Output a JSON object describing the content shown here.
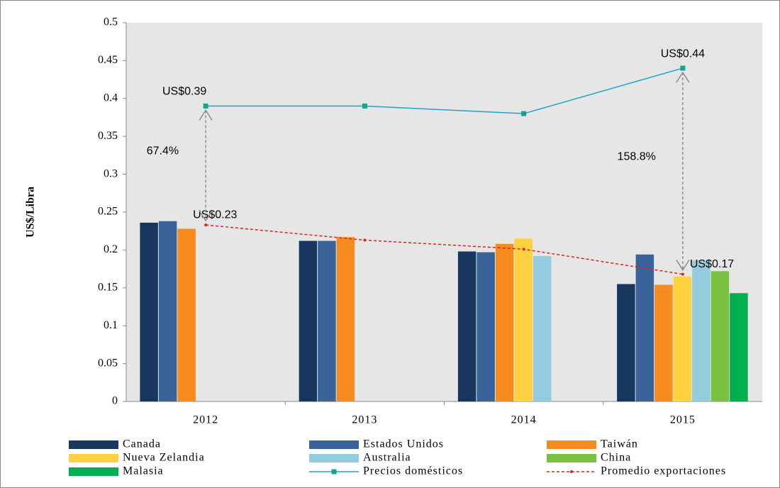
{
  "chart_data": {
    "type": "bar",
    "y_label": "US$/Libra",
    "categories": [
      "2012",
      "2013",
      "2014",
      "2015"
    ],
    "ylim": [
      0,
      0.5
    ],
    "yticks": [
      0,
      0.05,
      0.1,
      0.15,
      0.2,
      0.25,
      0.3,
      0.35,
      0.4,
      0.45,
      0.5
    ],
    "series": [
      {
        "name": "Canada",
        "color": "#17375e",
        "values": [
          0.236,
          0.212,
          0.198,
          0.155
        ]
      },
      {
        "name": "Estados Unidos",
        "color": "#3a6399",
        "values": [
          0.238,
          0.212,
          0.197,
          0.194
        ]
      },
      {
        "name": "Taiwán",
        "color": "#f68b1f",
        "values": [
          0.228,
          0.217,
          0.208,
          0.154
        ]
      },
      {
        "name": "Nueva Zelandia",
        "color": "#ffd040",
        "values": [
          null,
          null,
          0.215,
          0.165
        ]
      },
      {
        "name": "Australia",
        "color": "#93cddd",
        "values": [
          null,
          null,
          0.192,
          0.186
        ]
      },
      {
        "name": "China",
        "color": "#7ac142",
        "values": [
          null,
          null,
          null,
          0.172
        ]
      },
      {
        "name": "Malasia",
        "color": "#00b050",
        "values": [
          null,
          null,
          null,
          0.143
        ]
      }
    ],
    "lines": [
      {
        "name": "Precios domésticos",
        "color": "#1ca6c6",
        "marker_color": "#14a38b",
        "style": "solid",
        "values": [
          0.39,
          0.39,
          0.38,
          0.44
        ],
        "value_labels": [
          "US$0.39",
          null,
          null,
          "US$0.44"
        ]
      },
      {
        "name": "Promedio exportaciones",
        "color": "#e02020",
        "marker_color": "#e02020",
        "style": "dashed",
        "values": [
          0.233,
          0.213,
          0.201,
          0.168
        ],
        "value_labels": [
          "US$0.23",
          null,
          null,
          "US$0.17"
        ]
      }
    ],
    "annotations": [
      "67.4%",
      "158.8%"
    ]
  }
}
